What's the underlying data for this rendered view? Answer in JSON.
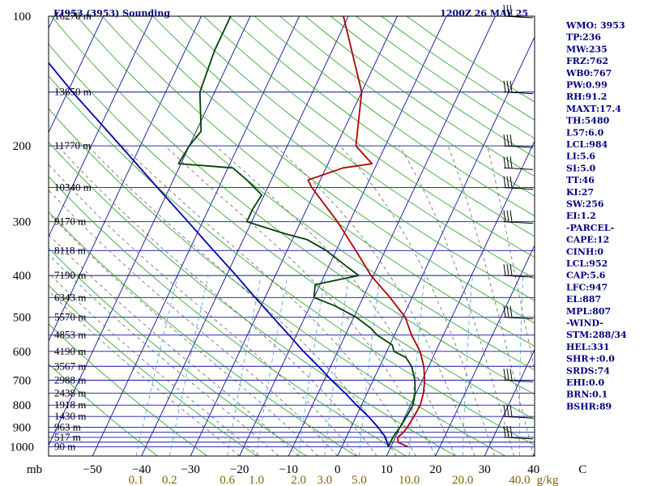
{
  "header": {
    "left": "EI953 (3953) Sounding",
    "right": "1200Z 26 MAY 25"
  },
  "chart_data": {
    "type": "line",
    "diagram": "skew-T log-P",
    "pressure_levels": [
      100,
      200,
      300,
      400,
      500,
      600,
      700,
      800,
      900,
      1000
    ],
    "pressure_unit": "mb",
    "temp_ticks": [
      -50,
      -40,
      -30,
      -20,
      -10,
      0,
      10,
      20,
      30,
      40,
      50
    ],
    "temp_labels": [
      "−50",
      "−40",
      "−30",
      "−20",
      "−10",
      "0",
      "10",
      "20",
      "30",
      "40",
      "C"
    ],
    "mixing_ratio_labels": [
      "0.1",
      "0.2",
      "0.6",
      "1.0",
      "2.0",
      "3.0",
      "5.0",
      "10.0",
      "20.0",
      "40.0"
    ],
    "mixing_ratio_unit": "g/kg",
    "heights": [
      {
        "p": 100,
        "label": "16270 m"
      },
      {
        "p": 150,
        "label": "13650 m"
      },
      {
        "p": 200,
        "label": "11770 m"
      },
      {
        "p": 250,
        "label": "10340 m"
      },
      {
        "p": 300,
        "label": "9170 m"
      },
      {
        "p": 350,
        "label": "8118 m"
      },
      {
        "p": 400,
        "label": "7190 m"
      },
      {
        "p": 450,
        "label": "6343 m"
      },
      {
        "p": 500,
        "label": "5570 m"
      },
      {
        "p": 550,
        "label": "4853 m"
      },
      {
        "p": 600,
        "label": "4190 m"
      },
      {
        "p": 650,
        "label": "3567 m"
      },
      {
        "p": 700,
        "label": "2988 m"
      },
      {
        "p": 750,
        "label": "2438 m"
      },
      {
        "p": 800,
        "label": "1918 m"
      },
      {
        "p": 850,
        "label": "1430 m"
      },
      {
        "p": 900,
        "label": "963 m"
      },
      {
        "p": 950,
        "label": "517 m"
      },
      {
        "p": 1000,
        "label": "90 m"
      }
    ],
    "series": [
      {
        "name": "",
        "color": "#b00000",
        "points": [
          [
            1000,
            13.5
          ],
          [
            975,
            11.0
          ],
          [
            950,
            10.5
          ],
          [
            925,
            11.2
          ],
          [
            900,
            11.5
          ],
          [
            850,
            11.8
          ],
          [
            800,
            12.0
          ],
          [
            750,
            11.5
          ],
          [
            700,
            10.5
          ],
          [
            650,
            9.0
          ],
          [
            600,
            6.8
          ],
          [
            550,
            3.5
          ],
          [
            500,
            0.5
          ],
          [
            450,
            -4.5
          ],
          [
            400,
            -10.5
          ],
          [
            350,
            -16.0
          ],
          [
            300,
            -22.5
          ],
          [
            250,
            -31.0
          ],
          [
            240,
            -32.5
          ],
          [
            225,
            -26.5
          ],
          [
            220,
            -21.0
          ],
          [
            200,
            -26.0
          ],
          [
            150,
            -30.0
          ],
          [
            100,
            -41.0
          ]
        ]
      },
      {
        "name": "",
        "color": "#004000",
        "points": [
          [
            1000,
            9.5
          ],
          [
            950,
            9.5
          ],
          [
            900,
            10.0
          ],
          [
            850,
            10.3
          ],
          [
            800,
            10.5
          ],
          [
            750,
            9.8
          ],
          [
            700,
            8.5
          ],
          [
            650,
            6.5
          ],
          [
            620,
            4.5
          ],
          [
            600,
            1.5
          ],
          [
            580,
            0.5
          ],
          [
            550,
            -3.5
          ],
          [
            530,
            -5.5
          ],
          [
            500,
            -9.5
          ],
          [
            470,
            -15.0
          ],
          [
            450,
            -20.0
          ],
          [
            420,
            -21.0
          ],
          [
            400,
            -13.0
          ],
          [
            380,
            -16.5
          ],
          [
            350,
            -22.0
          ],
          [
            330,
            -27.0
          ],
          [
            320,
            -32.0
          ],
          [
            300,
            -41.0
          ],
          [
            280,
            -41.0
          ],
          [
            260,
            -40.5
          ],
          [
            240,
            -45.0
          ],
          [
            225,
            -49.0
          ],
          [
            220,
            -60.5
          ],
          [
            200,
            -60.0
          ],
          [
            185,
            -59.0
          ],
          [
            150,
            -63.0
          ],
          [
            120,
            -64.0
          ],
          [
            100,
            -64.0
          ]
        ]
      },
      {
        "name": "",
        "color": "#0000b0",
        "points": [
          [
            1000,
            9.5
          ],
          [
            950,
            8.0
          ],
          [
            900,
            5.5
          ],
          [
            850,
            2.5
          ],
          [
            800,
            -1.0
          ],
          [
            750,
            -4.5
          ],
          [
            700,
            -8.5
          ],
          [
            650,
            -12.5
          ],
          [
            600,
            -17.0
          ],
          [
            550,
            -21.5
          ],
          [
            500,
            -26.5
          ],
          [
            450,
            -32.0
          ],
          [
            400,
            -38.0
          ],
          [
            350,
            -45.0
          ],
          [
            300,
            -53.0
          ],
          [
            250,
            -62.5
          ],
          [
            200,
            -74.0
          ],
          [
            150,
            -89.0
          ],
          [
            100,
            -109.0
          ]
        ]
      }
    ],
    "wind_barbs_at": [
      100,
      150,
      200,
      225,
      250,
      300,
      400,
      500,
      700,
      850,
      950
    ]
  },
  "indices": [
    "WMO: 3953",
    "TP:236",
    "MW:235",
    "FRZ:762",
    "WB0:767",
    "PW:0.99",
    "RH:91.2",
    "MAXT:17.4",
    "TH:5480",
    "L57:6.0",
    "LCL:984",
    "LI:5.6",
    "SI:5.0",
    "TT:46",
    "KI:27",
    "SW:256",
    "EI:1.2",
    "-PARCEL-",
    "CAPE:12",
    "CINH:0",
    "LCL:952",
    "CAP:5.6",
    "LFC:947",
    "EL:887",
    "MPL:807",
    "-WIND-",
    "STM:288/34",
    "HEL:331",
    "SHR+:0.0",
    "SRDS:74",
    "EHI:0.0",
    "BRN:0.1",
    "BSHR:89"
  ]
}
